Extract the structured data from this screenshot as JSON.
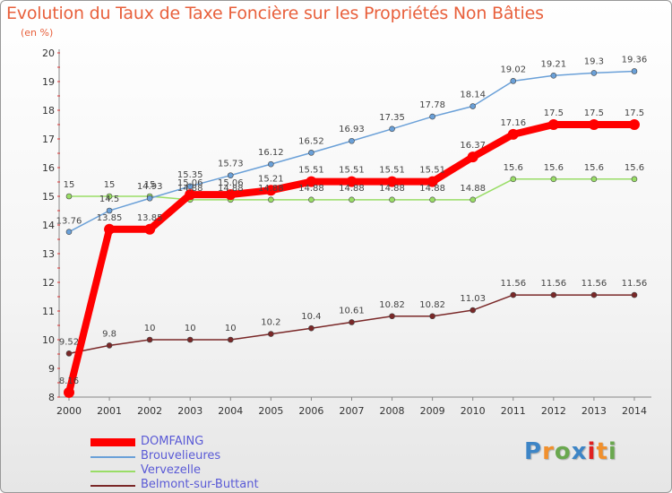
{
  "title": "Evolution du Taux de Taxe Foncière sur les Propriétés Non Bâties",
  "unit": "(en %)",
  "brand": "Proxiti",
  "chart_data": {
    "type": "line",
    "x": [
      "2000",
      "2001",
      "2002",
      "2003",
      "2004",
      "2005",
      "2006",
      "2007",
      "2008",
      "2009",
      "2010",
      "2011",
      "2012",
      "2013",
      "2014"
    ],
    "ylim": [
      8,
      20
    ],
    "yticks": [
      8,
      9,
      10,
      11,
      12,
      13,
      14,
      15,
      16,
      17,
      18,
      19,
      20
    ],
    "grid": false,
    "legend_position": "bottom-left",
    "series": [
      {
        "name": "DOMFAING",
        "color": "#ff0000",
        "values": [
          8.16,
          13.85,
          13.85,
          15.06,
          15.06,
          15.21,
          15.51,
          15.51,
          15.51,
          15.51,
          16.37,
          17.16,
          17.5,
          17.5,
          17.5
        ],
        "labels": [
          "8.16",
          "13.85",
          "13.85",
          "15.06",
          "15.06",
          "15.21",
          "15.51",
          "15.51",
          "15.51",
          "15.51",
          "16.37",
          "17.16",
          "17.5",
          "17.5",
          "17.5"
        ]
      },
      {
        "name": "Brouvelieures",
        "color": "#6aa0d8",
        "values": [
          13.76,
          14.5,
          14.93,
          15.35,
          15.73,
          16.12,
          16.52,
          16.93,
          17.35,
          17.78,
          18.14,
          19.02,
          19.21,
          19.3,
          19.36
        ],
        "labels": [
          "13.76",
          "14.5",
          "14.93",
          "15.35",
          "15.73",
          "16.12",
          "16.52",
          "16.93",
          "17.35",
          "17.78",
          "18.14",
          "19.02",
          "19.21",
          "19.3",
          "19.36"
        ]
      },
      {
        "name": "Vervezelle",
        "color": "#99dd66",
        "values": [
          15,
          15,
          15,
          14.88,
          14.88,
          14.88,
          14.88,
          14.88,
          14.88,
          14.88,
          14.88,
          15.6,
          15.6,
          15.6,
          15.6
        ],
        "labels": [
          "15",
          "15",
          "15",
          "14.88",
          "14.88",
          "14.88",
          "14.88",
          "14.88",
          "14.88",
          "14.88",
          "14.88",
          "15.6",
          "15.6",
          "15.6",
          "15.6"
        ]
      },
      {
        "name": "Belmont-sur-Buttant",
        "color": "#7a2828",
        "values": [
          9.52,
          9.8,
          10,
          10,
          10,
          10.2,
          10.4,
          10.61,
          10.82,
          10.82,
          11.03,
          11.56,
          11.56,
          11.56,
          11.56
        ],
        "labels": [
          "9.52",
          "9.8",
          "10",
          "10",
          "10",
          "10.2",
          "10.4",
          "10.61",
          "10.82",
          "10.82",
          "11.03",
          "11.56",
          "11.56",
          "11.56",
          "11.56"
        ]
      }
    ]
  }
}
